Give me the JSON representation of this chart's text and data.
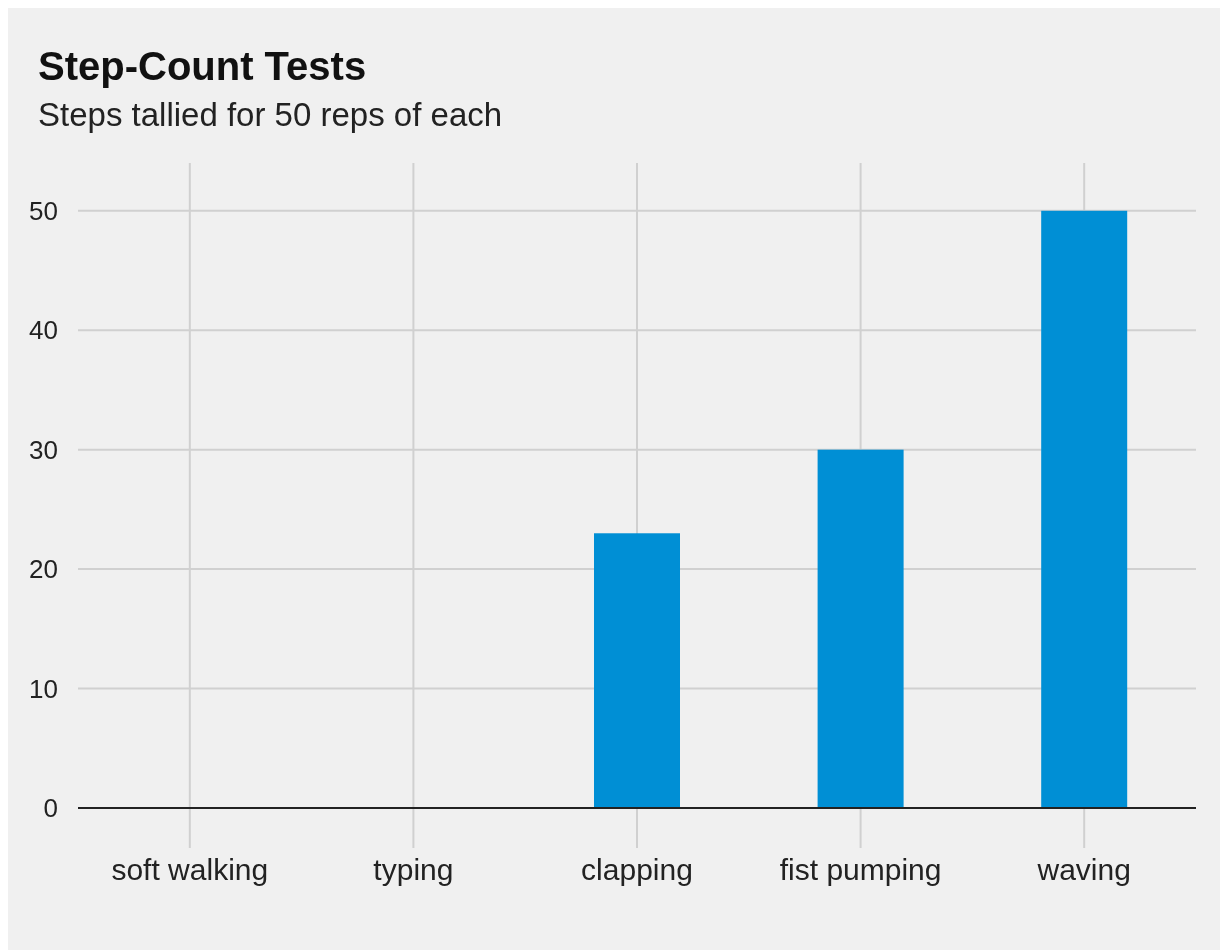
{
  "chart_data": {
    "type": "bar",
    "title": "Step-Count Tests",
    "subtitle": "Steps tallied for 50 reps of each",
    "categories": [
      "soft walking",
      "typing",
      "clapping",
      "fist pumping",
      "waving"
    ],
    "values": [
      0,
      0,
      23,
      30,
      50
    ],
    "color": "#008fd5",
    "ylim": [
      0,
      54
    ],
    "yticks": [
      0,
      10,
      20,
      30,
      40,
      50
    ],
    "grid": true
  }
}
